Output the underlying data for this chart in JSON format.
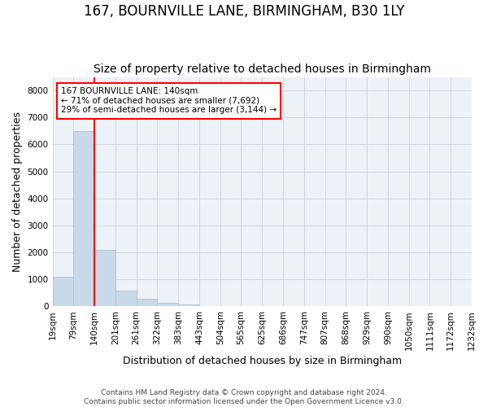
{
  "title_line1": "167, BOURNVILLE LANE, BIRMINGHAM, B30 1LY",
  "title_line2": "Size of property relative to detached houses in Birmingham",
  "xlabel": "Distribution of detached houses by size in Birmingham",
  "ylabel": "Number of detached properties",
  "footnote": "Contains HM Land Registry data © Crown copyright and database right 2024.\nContains public sector information licensed under the Open Government Licence v3.0.",
  "bin_labels": [
    "19sqm",
    "79sqm",
    "140sqm",
    "201sqm",
    "261sqm",
    "322sqm",
    "383sqm",
    "443sqm",
    "504sqm",
    "565sqm",
    "625sqm",
    "686sqm",
    "747sqm",
    "807sqm",
    "868sqm",
    "929sqm",
    "990sqm",
    "1050sqm",
    "1111sqm",
    "1172sqm",
    "1232sqm"
  ],
  "bar_values": [
    1100,
    6500,
    2100,
    600,
    280,
    120,
    60,
    25,
    10,
    5,
    0,
    0,
    0,
    0,
    0,
    0,
    0,
    0,
    0,
    0
  ],
  "bar_color": "#c9d9ea",
  "bar_edge_color": "#a8bece",
  "property_line_color": "red",
  "property_line_index": 2,
  "annotation_box_text": "167 BOURNVILLE LANE: 140sqm\n← 71% of detached houses are smaller (7,692)\n29% of semi-detached houses are larger (3,144) →",
  "ylim": [
    0,
    8500
  ],
  "yticks": [
    0,
    1000,
    2000,
    3000,
    4000,
    5000,
    6000,
    7000,
    8000
  ],
  "grid_color": "#ccd6e0",
  "background_color": "#edf2f7",
  "title_fontsize": 12,
  "subtitle_fontsize": 10,
  "axis_label_fontsize": 9,
  "tick_fontsize": 7.5,
  "footnote_fontsize": 6.5
}
